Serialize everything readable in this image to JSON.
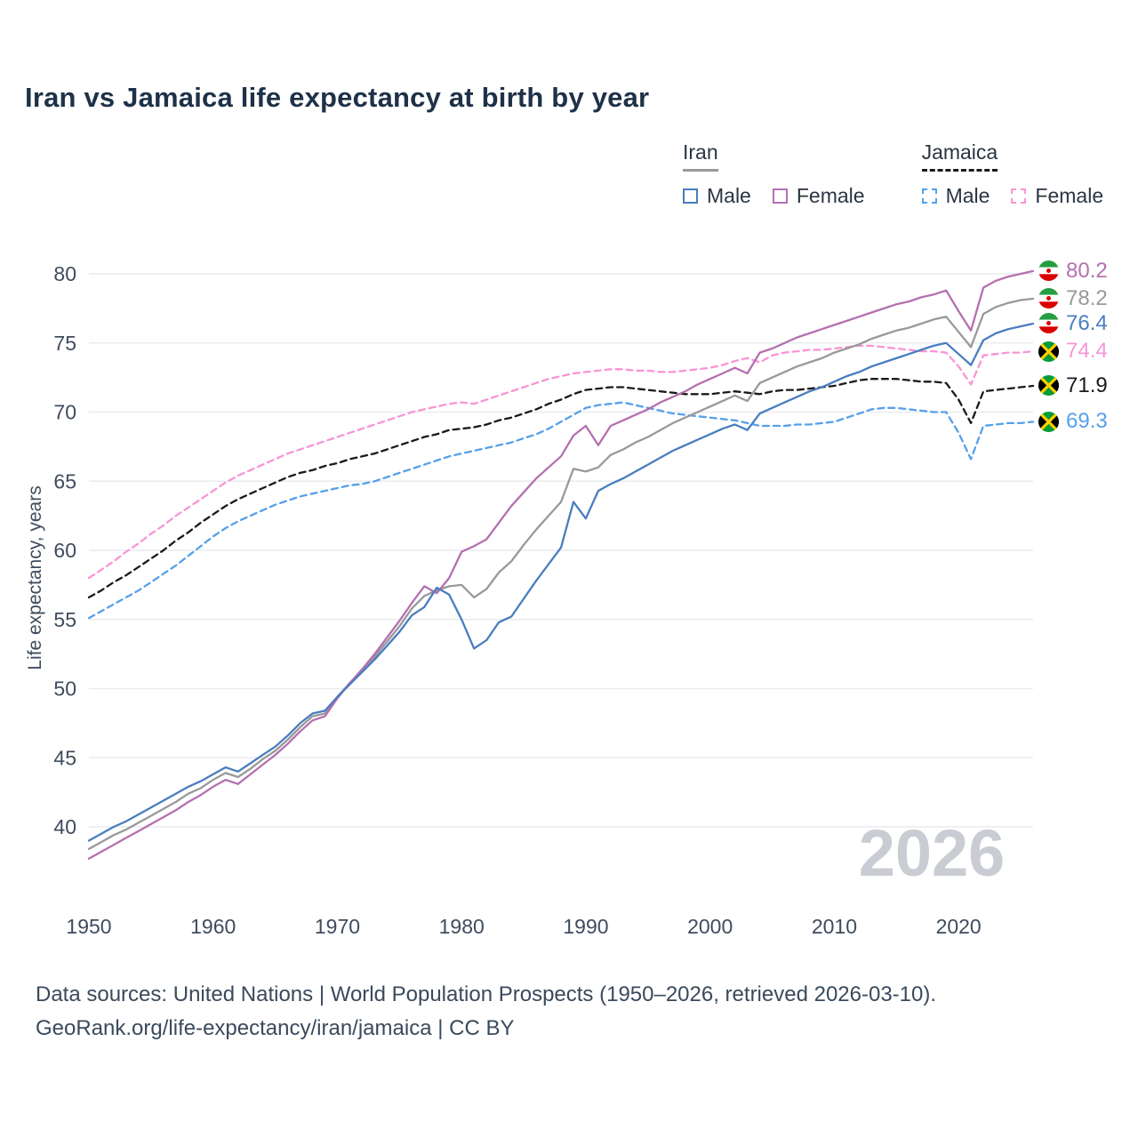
{
  "title": "Iran vs Jamaica life expectancy at birth by year",
  "legend": {
    "iran": {
      "title": "Iran",
      "male": "Male",
      "female": "Female"
    },
    "jamaica": {
      "title": "Jamaica",
      "male": "Male",
      "female": "Female"
    }
  },
  "y_axis": {
    "label": "Life expectancy, years",
    "ticks": [
      40,
      45,
      50,
      55,
      60,
      65,
      70,
      75,
      80
    ]
  },
  "x_axis": {
    "ticks": [
      1950,
      1960,
      1970,
      1980,
      1990,
      2000,
      2010,
      2020
    ]
  },
  "watermark": "2026",
  "footer": {
    "line1": "Data sources: United Nations | World Population Prospects (1950–2026, retrieved 2026-03-10).",
    "line2": "GeoRank.org/life-expectancy/iran/jamaica | CC BY"
  },
  "end_labels": [
    {
      "flag": "iran",
      "series": "iran_female",
      "value": "80.2",
      "y": 80.2
    },
    {
      "flag": "iran",
      "series": "iran_total",
      "value": "78.2",
      "y": 78.2
    },
    {
      "flag": "iran",
      "series": "iran_male",
      "value": "76.4",
      "y": 76.4
    },
    {
      "flag": "jamaica",
      "series": "jamaica_female",
      "value": "74.4",
      "y": 74.4
    },
    {
      "flag": "jamaica",
      "series": "jamaica_total",
      "value": "71.9",
      "y": 71.9
    },
    {
      "flag": "jamaica",
      "series": "jamaica_male",
      "value": "69.3",
      "y": 69.3
    }
  ],
  "chart_data": {
    "type": "line",
    "title": "Iran vs Jamaica life expectancy at birth by year",
    "xlabel": "",
    "ylabel": "Life expectancy, years",
    "xlim": [
      1950,
      2026
    ],
    "ylim": [
      33,
      81.5
    ],
    "x_start": 1950,
    "x_step": 1,
    "grid": "horizontal",
    "legend_position": "top-right",
    "series": [
      {
        "key": "jamaica_female",
        "name": "Jamaica Female",
        "color": "#f795d6",
        "dashed": true,
        "values": [
          58.0,
          58.6,
          59.2,
          59.9,
          60.5,
          61.2,
          61.8,
          62.5,
          63.1,
          63.7,
          64.3,
          64.9,
          65.4,
          65.8,
          66.2,
          66.6,
          67.0,
          67.3,
          67.6,
          67.9,
          68.2,
          68.5,
          68.8,
          69.1,
          69.4,
          69.7,
          70.0,
          70.2,
          70.4,
          70.6,
          70.7,
          70.6,
          70.9,
          71.2,
          71.5,
          71.8,
          72.1,
          72.4,
          72.6,
          72.8,
          72.9,
          73.0,
          73.1,
          73.1,
          73.0,
          73.0,
          72.9,
          72.9,
          73.0,
          73.1,
          73.2,
          73.4,
          73.7,
          73.9,
          73.6,
          74.1,
          74.3,
          74.4,
          74.5,
          74.5,
          74.6,
          74.7,
          74.8,
          74.8,
          74.7,
          74.6,
          74.5,
          74.4,
          74.4,
          74.3,
          73.3,
          72.0,
          74.1,
          74.2,
          74.3,
          74.3,
          74.4
        ]
      },
      {
        "key": "jamaica_total",
        "name": "Jamaica",
        "color": "#1a1a1a",
        "dashed": true,
        "values": [
          56.6,
          57.1,
          57.7,
          58.2,
          58.8,
          59.4,
          60.0,
          60.7,
          61.3,
          62.0,
          62.6,
          63.2,
          63.7,
          64.1,
          64.5,
          64.9,
          65.3,
          65.6,
          65.8,
          66.1,
          66.3,
          66.6,
          66.8,
          67.0,
          67.3,
          67.6,
          67.9,
          68.2,
          68.4,
          68.7,
          68.8,
          68.9,
          69.1,
          69.4,
          69.6,
          69.9,
          70.2,
          70.6,
          70.9,
          71.3,
          71.6,
          71.7,
          71.8,
          71.8,
          71.7,
          71.6,
          71.5,
          71.4,
          71.3,
          71.3,
          71.3,
          71.4,
          71.5,
          71.4,
          71.3,
          71.5,
          71.6,
          71.6,
          71.7,
          71.8,
          71.9,
          72.1,
          72.3,
          72.4,
          72.4,
          72.4,
          72.3,
          72.2,
          72.2,
          72.1,
          70.9,
          69.2,
          71.5,
          71.6,
          71.7,
          71.8,
          71.9
        ]
      },
      {
        "key": "jamaica_male",
        "name": "Jamaica Male",
        "color": "#56a0ea",
        "dashed": true,
        "values": [
          55.1,
          55.6,
          56.1,
          56.6,
          57.1,
          57.7,
          58.3,
          58.9,
          59.6,
          60.3,
          61.0,
          61.6,
          62.1,
          62.5,
          62.9,
          63.3,
          63.6,
          63.9,
          64.1,
          64.3,
          64.5,
          64.7,
          64.8,
          65.0,
          65.3,
          65.6,
          65.9,
          66.2,
          66.5,
          66.8,
          67.0,
          67.2,
          67.4,
          67.6,
          67.8,
          68.1,
          68.4,
          68.8,
          69.3,
          69.8,
          70.3,
          70.5,
          70.6,
          70.7,
          70.5,
          70.3,
          70.1,
          69.9,
          69.8,
          69.7,
          69.6,
          69.5,
          69.4,
          69.2,
          69.0,
          69.0,
          69.0,
          69.1,
          69.1,
          69.2,
          69.3,
          69.6,
          69.9,
          70.2,
          70.3,
          70.3,
          70.2,
          70.1,
          70.0,
          70.0,
          68.5,
          66.6,
          69.0,
          69.1,
          69.2,
          69.2,
          69.3
        ]
      },
      {
        "key": "iran_total",
        "name": "Iran",
        "color": "#999999",
        "dashed": false,
        "values": [
          38.4,
          38.9,
          39.4,
          39.8,
          40.3,
          40.8,
          41.3,
          41.8,
          42.4,
          42.8,
          43.4,
          43.9,
          43.6,
          44.2,
          44.9,
          45.5,
          46.3,
          47.2,
          48.0,
          48.2,
          49.4,
          50.4,
          51.3,
          52.3,
          53.4,
          54.5,
          55.8,
          56.7,
          57.1,
          57.4,
          57.5,
          56.6,
          57.2,
          58.4,
          59.2,
          60.4,
          61.5,
          62.5,
          63.5,
          65.9,
          65.7,
          66.0,
          66.9,
          67.3,
          67.8,
          68.2,
          68.7,
          69.2,
          69.6,
          70.0,
          70.4,
          70.8,
          71.2,
          70.8,
          72.1,
          72.5,
          72.9,
          73.3,
          73.6,
          73.9,
          74.3,
          74.6,
          74.9,
          75.3,
          75.6,
          75.9,
          76.1,
          76.4,
          76.7,
          76.9,
          75.8,
          74.7,
          77.1,
          77.6,
          77.9,
          78.1,
          78.2
        ]
      },
      {
        "key": "iran_female",
        "name": "Iran Female",
        "color": "#b470b0",
        "dashed": false,
        "values": [
          37.7,
          38.2,
          38.7,
          39.2,
          39.7,
          40.2,
          40.7,
          41.2,
          41.8,
          42.3,
          42.9,
          43.4,
          43.1,
          43.8,
          44.5,
          45.2,
          46.0,
          46.9,
          47.7,
          48.0,
          49.3,
          50.4,
          51.4,
          52.5,
          53.7,
          54.9,
          56.2,
          57.4,
          56.9,
          58.0,
          59.9,
          60.3,
          60.8,
          62.0,
          63.2,
          64.2,
          65.2,
          66.0,
          66.8,
          68.3,
          69.0,
          67.6,
          69.0,
          69.4,
          69.8,
          70.2,
          70.7,
          71.1,
          71.5,
          72.0,
          72.4,
          72.8,
          73.2,
          72.8,
          74.3,
          74.6,
          75.0,
          75.4,
          75.7,
          76.0,
          76.3,
          76.6,
          76.9,
          77.2,
          77.5,
          77.8,
          78.0,
          78.3,
          78.5,
          78.8,
          77.3,
          75.9,
          79.0,
          79.5,
          79.8,
          80.0,
          80.2
        ]
      },
      {
        "key": "iran_male",
        "name": "Iran Male",
        "color": "#4a7dbf",
        "dashed": false,
        "values": [
          39.0,
          39.5,
          40.0,
          40.4,
          40.9,
          41.4,
          41.9,
          42.4,
          42.9,
          43.3,
          43.8,
          44.3,
          44.0,
          44.6,
          45.2,
          45.8,
          46.6,
          47.5,
          48.2,
          48.4,
          49.4,
          50.3,
          51.2,
          52.1,
          53.1,
          54.1,
          55.3,
          55.9,
          57.3,
          56.8,
          55.0,
          52.9,
          53.5,
          54.8,
          55.2,
          56.5,
          57.8,
          59.0,
          60.2,
          63.5,
          62.3,
          64.3,
          64.8,
          65.2,
          65.7,
          66.2,
          66.7,
          67.2,
          67.6,
          68.0,
          68.4,
          68.8,
          69.1,
          68.7,
          69.9,
          70.3,
          70.7,
          71.1,
          71.5,
          71.8,
          72.2,
          72.6,
          72.9,
          73.3,
          73.6,
          73.9,
          74.2,
          74.5,
          74.8,
          75.0,
          74.2,
          73.4,
          75.2,
          75.7,
          76.0,
          76.2,
          76.4
        ]
      }
    ]
  },
  "colors": {
    "iran_male": "#4a7dbf",
    "iran_female": "#b470b0",
    "iran_total": "#999999",
    "jamaica_male": "#56a0ea",
    "jamaica_female": "#f795d6",
    "jamaica_total": "#1a1a1a",
    "title_text": "#1e3148",
    "axis_text": "#3f4c5e",
    "watermark": "#c9ccd3",
    "gridline": "#e9ebee"
  }
}
